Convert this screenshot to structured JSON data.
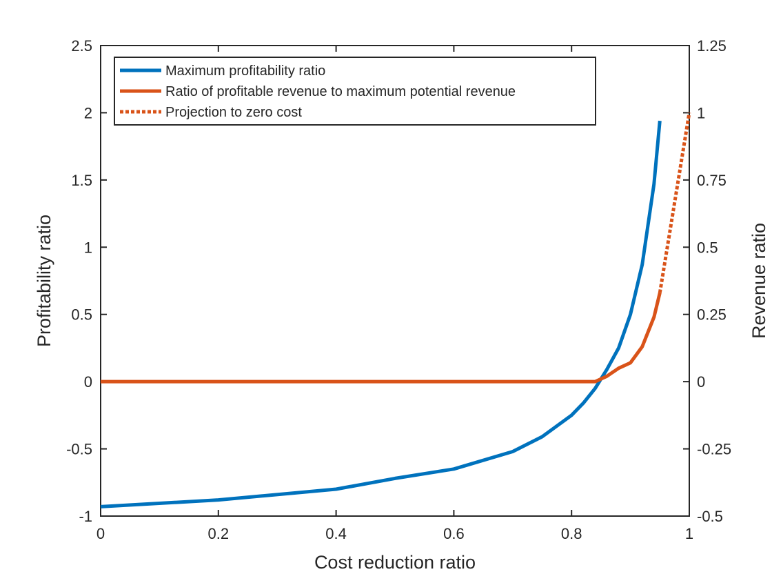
{
  "chart_data": {
    "type": "line",
    "xlabel": "Cost reduction ratio",
    "ylabel_left": "Profitability ratio",
    "ylabel_right": "Revenue ratio",
    "xlim": [
      0,
      1
    ],
    "ylim_left": [
      -1,
      2.5
    ],
    "ylim_right": [
      -0.5,
      1.25
    ],
    "x_ticks": [
      0,
      0.2,
      0.4,
      0.6,
      0.8,
      1
    ],
    "x_tick_labels": [
      "0",
      "0.2",
      "0.4",
      "0.6",
      "0.8",
      "1"
    ],
    "y_left_ticks": [
      -1,
      -0.5,
      0,
      0.5,
      1,
      1.5,
      2,
      2.5
    ],
    "y_left_tick_labels": [
      "-1",
      "-0.5",
      "0",
      "0.5",
      "1",
      "1.5",
      "2",
      "2.5"
    ],
    "y_right_ticks": [
      -0.5,
      -0.25,
      0,
      0.25,
      0.5,
      0.75,
      1,
      1.25
    ],
    "y_right_tick_labels": [
      "-0.5",
      "-0.25",
      "0",
      "0.25",
      "0.5",
      "0.75",
      "1",
      "1.25"
    ],
    "grid": false,
    "legend_position": "top-left",
    "series": [
      {
        "name": "Maximum profitability ratio",
        "axis": "left",
        "color": "#0072BD",
        "style": "solid",
        "x": [
          0,
          0.2,
          0.4,
          0.5,
          0.6,
          0.7,
          0.75,
          0.8,
          0.82,
          0.84,
          0.86,
          0.88,
          0.9,
          0.92,
          0.94,
          0.95
        ],
        "y": [
          -0.93,
          -0.88,
          -0.8,
          -0.72,
          -0.65,
          -0.52,
          -0.41,
          -0.25,
          -0.16,
          -0.05,
          0.09,
          0.25,
          0.5,
          0.87,
          1.47,
          1.94
        ]
      },
      {
        "name": "Ratio of profitable revenue to maximum potential revenue",
        "axis": "right",
        "color": "#D95319",
        "style": "solid",
        "x": [
          0,
          0.84,
          0.86,
          0.88,
          0.9,
          0.92,
          0.94,
          0.95
        ],
        "y": [
          0,
          0,
          0.02,
          0.05,
          0.07,
          0.13,
          0.24,
          0.33
        ]
      },
      {
        "name": "Projection to zero cost",
        "axis": "right",
        "color": "#D95319",
        "style": "dotted",
        "x": [
          0.95,
          1
        ],
        "y": [
          0.33,
          1
        ]
      }
    ]
  }
}
